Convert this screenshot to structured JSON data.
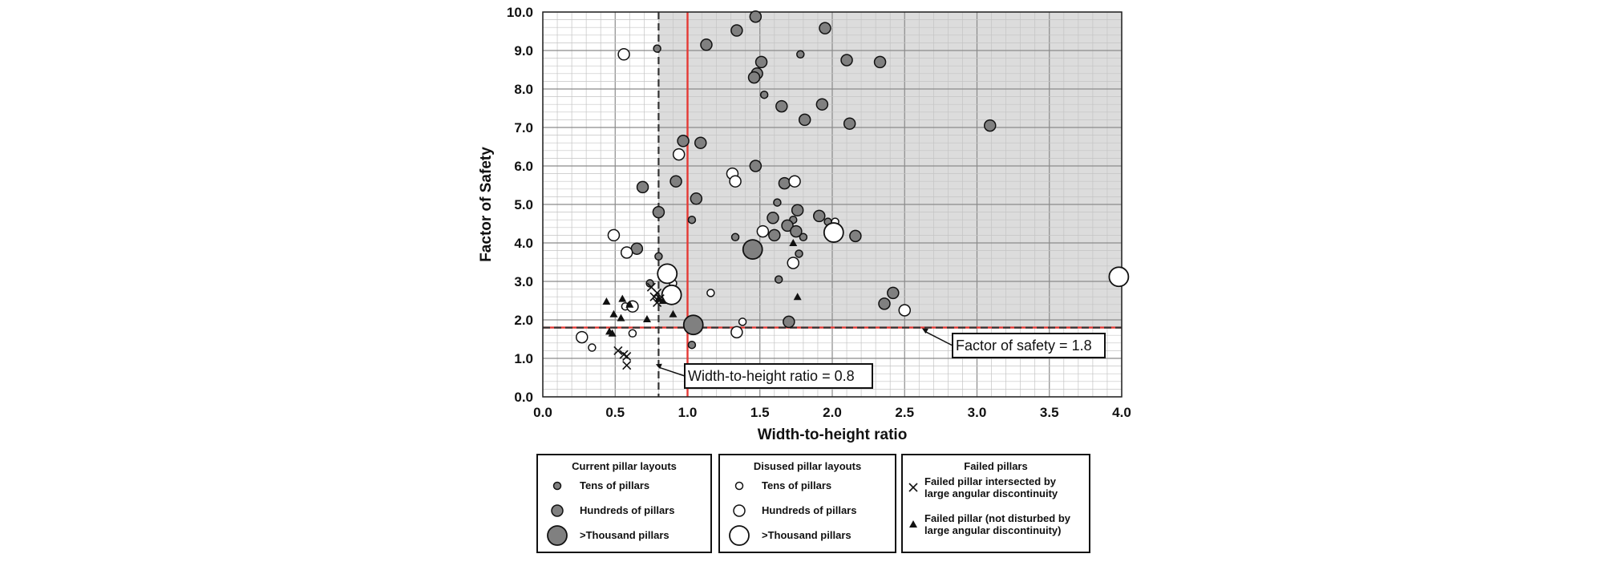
{
  "chart_data": {
    "type": "scatter",
    "xlabel": "Width-to-height ratio",
    "ylabel": "Factor of Safety",
    "xlim": [
      0,
      4
    ],
    "ylim": [
      0,
      10
    ],
    "x_ticks": [
      "0.0",
      "0.5",
      "1.0",
      "1.5",
      "2.0",
      "2.5",
      "3.0",
      "3.5",
      "4.0"
    ],
    "y_ticks": [
      "0.0",
      "1.0",
      "2.0",
      "3.0",
      "4.0",
      "5.0",
      "6.0",
      "7.0",
      "8.0",
      "9.0",
      "10.0"
    ],
    "grid": true,
    "shaded_region": {
      "x_from": 0.8,
      "x_to": 4.0,
      "y_from": 1.8,
      "y_to": 10.0,
      "color": "#dcdcdc"
    },
    "reference_lines": [
      {
        "orientation": "vertical",
        "value": 0.8,
        "style": "dashed",
        "color": "#333333"
      },
      {
        "orientation": "vertical",
        "value": 1.0,
        "style": "solid",
        "color": "#e53935"
      },
      {
        "orientation": "horizontal",
        "value": 1.8,
        "style": "solid",
        "color": "#e53935"
      },
      {
        "orientation": "horizontal",
        "value": 1.8,
        "style": "dashed",
        "color": "#333333"
      }
    ],
    "annotations": [
      {
        "text": "Width-to-height ratio = 0.8",
        "arrow_to": [
          0.78,
          0.85
        ]
      },
      {
        "text": "Factor of safety = 1.8",
        "arrow_to": [
          2.62,
          1.78
        ]
      }
    ],
    "series": [
      {
        "group": "Current pillar layouts",
        "name": "Tens of pillars",
        "marker": "circle",
        "fill": "#808080",
        "size": "small",
        "points": [
          [
            0.79,
            9.05
          ],
          [
            1.78,
            8.9
          ],
          [
            1.53,
            7.85
          ],
          [
            0.74,
            2.95
          ],
          [
            0.8,
            3.65
          ],
          [
            1.03,
            4.6
          ],
          [
            1.33,
            4.15
          ],
          [
            1.62,
            5.05
          ],
          [
            1.8,
            4.15
          ],
          [
            1.77,
            3.72
          ],
          [
            1.63,
            3.05
          ],
          [
            1.97,
            4.55
          ],
          [
            1.03,
            1.35
          ],
          [
            1.73,
            4.6
          ]
        ]
      },
      {
        "group": "Current pillar layouts",
        "name": "Hundreds of pillars",
        "marker": "circle",
        "fill": "#808080",
        "size": "medium",
        "points": [
          [
            1.47,
            9.88
          ],
          [
            1.34,
            9.52
          ],
          [
            1.95,
            9.58
          ],
          [
            1.13,
            9.15
          ],
          [
            1.51,
            8.7
          ],
          [
            2.1,
            8.75
          ],
          [
            2.33,
            8.7
          ],
          [
            1.48,
            8.4
          ],
          [
            1.46,
            8.3
          ],
          [
            1.65,
            7.55
          ],
          [
            1.93,
            7.6
          ],
          [
            1.81,
            7.2
          ],
          [
            2.12,
            7.1
          ],
          [
            3.09,
            7.05
          ],
          [
            0.97,
            6.65
          ],
          [
            1.09,
            6.6
          ],
          [
            1.47,
            6.0
          ],
          [
            0.92,
            5.6
          ],
          [
            1.67,
            5.55
          ],
          [
            0.69,
            5.45
          ],
          [
            1.06,
            5.15
          ],
          [
            0.8,
            4.8
          ],
          [
            1.59,
            4.65
          ],
          [
            1.76,
            4.85
          ],
          [
            1.91,
            4.7
          ],
          [
            1.69,
            4.45
          ],
          [
            1.75,
            4.3
          ],
          [
            1.6,
            4.2
          ],
          [
            2.16,
            4.18
          ],
          [
            0.65,
            3.85
          ],
          [
            2.42,
            2.7
          ],
          [
            2.36,
            2.42
          ],
          [
            1.7,
            1.95
          ]
        ]
      },
      {
        "group": "Current pillar layouts",
        "name": ">Thousand pillars",
        "marker": "circle",
        "fill": "#808080",
        "size": "large",
        "points": [
          [
            1.45,
            3.83
          ],
          [
            1.04,
            1.87
          ]
        ]
      },
      {
        "group": "Disused pillar layouts",
        "name": "Tens of pillars",
        "marker": "circle",
        "fill": "#ffffff",
        "size": "small",
        "points": [
          [
            0.34,
            1.28
          ],
          [
            0.62,
            1.65
          ],
          [
            0.9,
            2.95
          ],
          [
            1.16,
            2.7
          ],
          [
            1.38,
            1.95
          ],
          [
            2.02,
            4.55
          ],
          [
            0.57,
            2.35
          ]
        ]
      },
      {
        "group": "Disused pillar layouts",
        "name": "Hundreds of pillars",
        "marker": "circle",
        "fill": "#ffffff",
        "size": "medium",
        "points": [
          [
            0.56,
            8.9
          ],
          [
            0.94,
            6.3
          ],
          [
            1.31,
            5.8
          ],
          [
            1.33,
            5.6
          ],
          [
            1.74,
            5.6
          ],
          [
            0.49,
            4.2
          ],
          [
            1.52,
            4.3
          ],
          [
            0.58,
            3.75
          ],
          [
            1.73,
            3.48
          ],
          [
            0.62,
            2.35
          ],
          [
            0.27,
            1.55
          ],
          [
            1.34,
            1.68
          ],
          [
            2.5,
            2.25
          ]
        ]
      },
      {
        "group": "Disused pillar layouts",
        "name": ">Thousand pillars",
        "marker": "circle",
        "fill": "#ffffff",
        "size": "large",
        "points": [
          [
            2.01,
            4.27
          ],
          [
            0.86,
            3.2
          ],
          [
            0.89,
            2.65
          ],
          [
            3.98,
            3.12
          ]
        ]
      },
      {
        "group": "Failed pillars",
        "name": "Failed pillar intersected by large angular discontinuity",
        "marker": "x",
        "fill": "#111111",
        "size": "small",
        "points": [
          [
            0.52,
            1.2
          ],
          [
            0.56,
            1.1
          ],
          [
            0.58,
            1.05
          ],
          [
            0.58,
            0.82
          ],
          [
            0.75,
            2.85
          ],
          [
            0.77,
            2.6
          ],
          [
            0.79,
            2.7
          ],
          [
            0.81,
            2.55
          ],
          [
            0.79,
            2.45
          ]
        ]
      },
      {
        "group": "Failed pillars",
        "name": "Failed pillar (not disturbed by large angular discontinuity)",
        "marker": "triangle",
        "fill": "#111111",
        "size": "small",
        "points": [
          [
            0.44,
            2.48
          ],
          [
            0.49,
            2.15
          ],
          [
            0.54,
            2.05
          ],
          [
            0.55,
            2.55
          ],
          [
            0.6,
            2.4
          ],
          [
            0.46,
            1.7
          ],
          [
            0.48,
            1.65
          ],
          [
            0.72,
            2.02
          ],
          [
            0.8,
            2.55
          ],
          [
            0.83,
            2.5
          ],
          [
            0.9,
            2.15
          ],
          [
            1.73,
            4.0
          ],
          [
            1.76,
            2.6
          ]
        ]
      }
    ]
  },
  "legend": [
    {
      "title": "Current pillar layouts",
      "items": [
        {
          "label": "Tens of pillars",
          "marker": "circle",
          "fill": "#808080",
          "size": "small"
        },
        {
          "label": "Hundreds of pillars",
          "marker": "circle",
          "fill": "#808080",
          "size": "medium"
        },
        {
          "label": ">Thousand pillars",
          "marker": "circle",
          "fill": "#808080",
          "size": "large"
        }
      ]
    },
    {
      "title": "Disused pillar layouts",
      "items": [
        {
          "label": "Tens of pillars",
          "marker": "circle",
          "fill": "#ffffff",
          "size": "small"
        },
        {
          "label": "Hundreds of pillars",
          "marker": "circle",
          "fill": "#ffffff",
          "size": "medium"
        },
        {
          "label": ">Thousand pillars",
          "marker": "circle",
          "fill": "#ffffff",
          "size": "large"
        }
      ]
    },
    {
      "title": "Failed pillars",
      "items": [
        {
          "label": "Failed pillar intersected by\nlarge angular discontinuity",
          "marker": "x",
          "fill": "#111111",
          "size": "small"
        },
        {
          "label": "Failed pillar (not disturbed by\nlarge angular discontinuity)",
          "marker": "triangle",
          "fill": "#111111",
          "size": "small"
        }
      ]
    }
  ]
}
